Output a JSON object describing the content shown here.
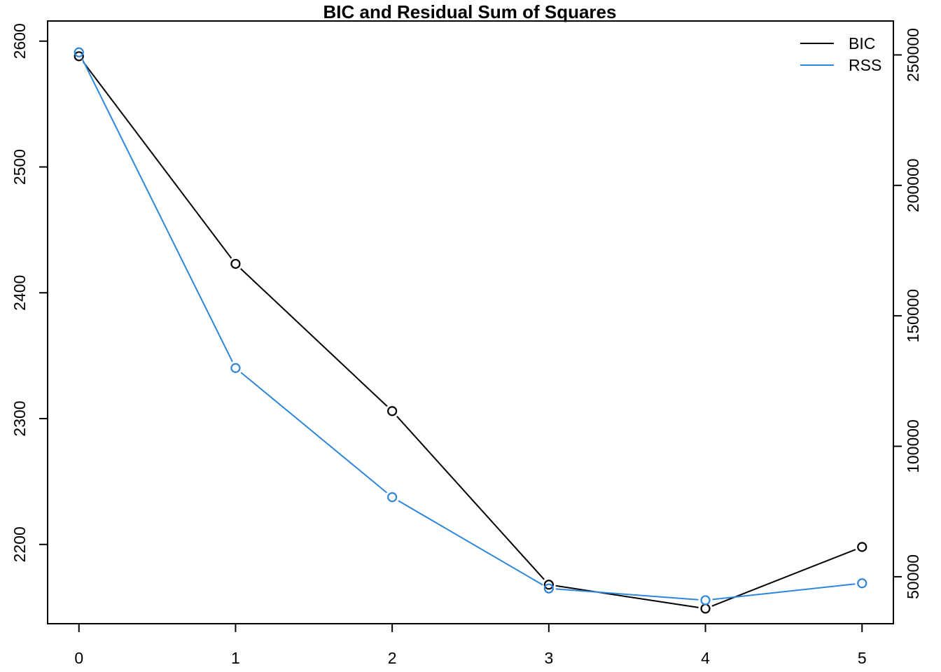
{
  "chart_data": {
    "type": "line",
    "title": "BIC and Residual Sum of Squares",
    "xlabel": "",
    "ylabel": "",
    "x": [
      0,
      1,
      2,
      3,
      4,
      5
    ],
    "xlim": [
      -0.2,
      5.2
    ],
    "x_ticks": [
      "0",
      "1",
      "2",
      "3",
      "4",
      "5"
    ],
    "series": [
      {
        "name": "BIC",
        "axis": "left",
        "color": "#000000",
        "values": [
          2588,
          2423,
          2306,
          2168,
          2149,
          2198
        ]
      },
      {
        "name": "RSS",
        "axis": "right",
        "color": "#2d86d9",
        "values": [
          251000,
          130000,
          80500,
          45500,
          41000,
          47500
        ]
      }
    ],
    "left_axis": {
      "ylim": [
        2137,
        2616
      ],
      "ticks": [
        "2200",
        "2300",
        "2400",
        "2500",
        "2600"
      ]
    },
    "right_axis": {
      "ylim": [
        32000,
        263000
      ],
      "ticks": [
        "50000",
        "100000",
        "150000",
        "200000",
        "250000"
      ]
    },
    "grid": false,
    "legend": {
      "position": "top-right",
      "entries": [
        "BIC",
        "RSS"
      ]
    }
  }
}
